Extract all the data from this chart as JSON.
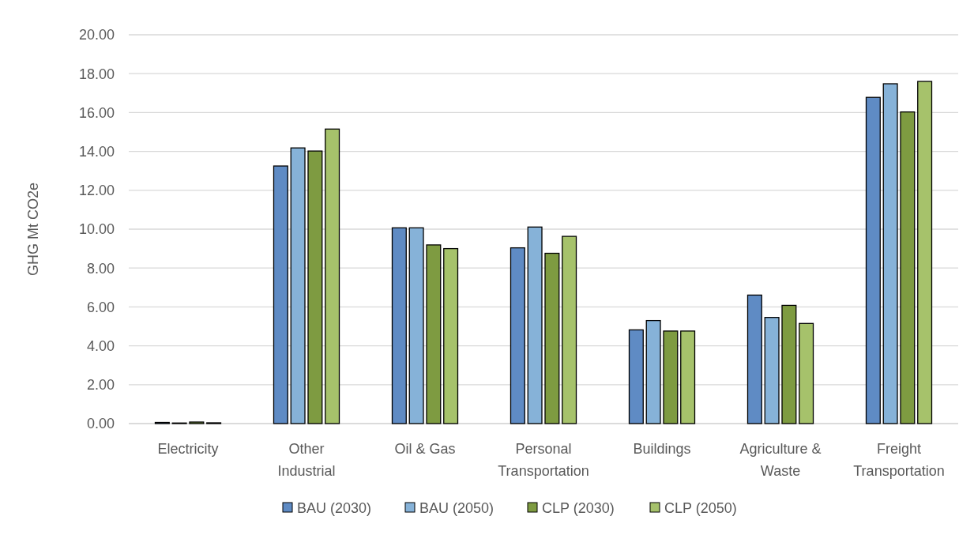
{
  "chart_data": {
    "type": "bar",
    "ylabel": "GHG Mt CO2e",
    "categories": [
      "Electricity",
      "Other Industrial",
      "Oil & Gas",
      "Personal Transportation",
      "Buildings",
      "Agriculture & Waste",
      "Freight Transportation"
    ],
    "series": [
      {
        "name": "BAU (2030)",
        "color": "#5f8bc4",
        "values": [
          0.06,
          13.25,
          10.07,
          9.04,
          4.82,
          6.61,
          16.78
        ]
      },
      {
        "name": "BAU (2050)",
        "color": "#86b2d8",
        "values": [
          0.03,
          14.18,
          10.07,
          10.11,
          5.3,
          5.46,
          17.48
        ]
      },
      {
        "name": "CLP (2030)",
        "color": "#7e9b41",
        "values": [
          0.08,
          14.02,
          9.19,
          8.76,
          4.76,
          6.08,
          16.03
        ]
      },
      {
        "name": "CLP (2050)",
        "color": "#a6c26b",
        "values": [
          0.04,
          15.15,
          9.0,
          9.63,
          4.76,
          5.15,
          17.6
        ]
      }
    ],
    "ylim": [
      0,
      20
    ],
    "yticks": [
      {
        "value": 0,
        "label": "0.00"
      },
      {
        "value": 2,
        "label": "2.00"
      },
      {
        "value": 4,
        "label": "4.00"
      },
      {
        "value": 6,
        "label": "6.00"
      },
      {
        "value": 8,
        "label": "8.00"
      },
      {
        "value": 10,
        "label": "10.00"
      },
      {
        "value": 12,
        "label": "12.00"
      },
      {
        "value": 14,
        "label": "14.00"
      },
      {
        "value": 16,
        "label": "16.00"
      },
      {
        "value": 18,
        "label": "18.00"
      },
      {
        "value": 20,
        "label": "20.00"
      }
    ],
    "grid": "y",
    "legend": "bottom"
  }
}
